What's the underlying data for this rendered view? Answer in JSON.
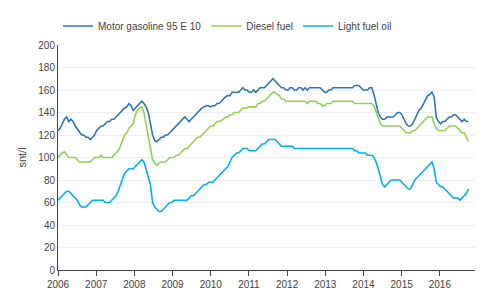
{
  "chart_data": {
    "type": "line",
    "ylabel": "snt/l",
    "xlim": [
      2006.0,
      2016.92
    ],
    "ylim": [
      0,
      200
    ],
    "xticks": [
      2006,
      2007,
      2008,
      2009,
      2010,
      2011,
      2012,
      2013,
      2014,
      2015,
      2016
    ],
    "yticks": [
      0,
      20,
      40,
      60,
      80,
      100,
      120,
      140,
      160,
      180,
      200
    ],
    "grid": true,
    "legend": "upper left",
    "x": [
      2006,
      2006.0563,
      2006.1126,
      2006.1688,
      2006.2251,
      2006.2814,
      2006.3377,
      2006.394,
      2006.4503,
      2006.5065,
      2006.5628,
      2006.6191,
      2006.6754,
      2006.7317,
      2006.788,
      2006.8442,
      2006.9005,
      2006.9568,
      2007.0131,
      2007.0694,
      2007.1257,
      2007.1819,
      2007.2382,
      2007.2945,
      2007.3508,
      2007.4071,
      2007.4634,
      2007.5196,
      2007.5759,
      2007.6322,
      2007.6885,
      2007.7448,
      2007.801,
      2007.8573,
      2007.9136,
      2007.9699,
      2008.0262,
      2008.0825,
      2008.1387,
      2008.195,
      2008.2513,
      2008.3076,
      2008.3639,
      2008.4202,
      2008.4764,
      2008.5327,
      2008.589,
      2008.6453,
      2008.7016,
      2008.7579,
      2008.8141,
      2008.8704,
      2008.9267,
      2008.983,
      2009.0393,
      2009.0955,
      2009.1518,
      2009.2081,
      2009.2644,
      2009.3207,
      2009.377,
      2009.4332,
      2009.4895,
      2009.5458,
      2009.6021,
      2009.6584,
      2009.7147,
      2009.7709,
      2009.8272,
      2009.8835,
      2009.9398,
      2009.9961,
      2010.0524,
      2010.1086,
      2010.1649,
      2010.2212,
      2010.2775,
      2010.3338,
      2010.3901,
      2010.4463,
      2010.5026,
      2010.5589,
      2010.6152,
      2010.6715,
      2010.7277,
      2010.784,
      2010.8403,
      2010.8966,
      2010.9529,
      2011.0092,
      2011.0654,
      2011.1217,
      2011.178,
      2011.2343,
      2011.2906,
      2011.3469,
      2011.4031,
      2011.4594,
      2011.5157,
      2011.572,
      2011.6283,
      2011.6846,
      2011.7408,
      2011.7971,
      2011.8534,
      2011.9097,
      2011.966,
      2012.0223,
      2012.0785,
      2012.1348,
      2012.1911,
      2012.2474,
      2012.3037,
      2012.3599,
      2012.4162,
      2012.4725,
      2012.5288,
      2012.5851,
      2012.6414,
      2012.6976,
      2012.7539,
      2012.8102,
      2012.8665,
      2012.9228,
      2012.9791,
      2013.0353,
      2013.0916,
      2013.1479,
      2013.2042,
      2013.2605,
      2013.3168,
      2013.373,
      2013.4293,
      2013.4856,
      2013.5419,
      2013.5982,
      2013.6545,
      2013.7107,
      2013.767,
      2013.8233,
      2013.8796,
      2013.9359,
      2013.9921,
      2014.0484,
      2014.1047,
      2014.161,
      2014.2173,
      2014.2736,
      2014.3298,
      2014.3861,
      2014.4424,
      2014.4987,
      2014.555,
      2014.6113,
      2014.6675,
      2014.7238,
      2014.7801,
      2014.8364,
      2014.8927,
      2014.949,
      2015.0052,
      2015.0615,
      2015.1178,
      2015.1741,
      2015.2304,
      2015.2866,
      2015.3429,
      2015.3992,
      2015.4555,
      2015.5118,
      2015.5681,
      2015.6243,
      2015.6806,
      2015.7369,
      2015.7932,
      2015.8495,
      2015.9058,
      2015.962,
      2016.0183,
      2016.0746,
      2016.1309,
      2016.1872,
      2016.2435,
      2016.2997,
      2016.356,
      2016.4123,
      2016.4686,
      2016.5249,
      2016.5812,
      2016.6374,
      2016.6937,
      2016.75
    ],
    "series": [
      {
        "name": "Motor gasoline 95 E 10",
        "color": "#2e75b6",
        "values": [
          124,
          126,
          130,
          134,
          136,
          132,
          134,
          132,
          128,
          125,
          122,
          120,
          120,
          118,
          118,
          116,
          118,
          120,
          124,
          126,
          128,
          128,
          130,
          132,
          132,
          134,
          134,
          136,
          138,
          140,
          142,
          144,
          145,
          148,
          146,
          142,
          144,
          146,
          148,
          150,
          148,
          145,
          140,
          130,
          120,
          115,
          114,
          116,
          118,
          118,
          120,
          120,
          122,
          124,
          126,
          128,
          130,
          132,
          134,
          136,
          134,
          132,
          134,
          136,
          138,
          140,
          142,
          144,
          145,
          146,
          146,
          145,
          146,
          146,
          148,
          148,
          150,
          152,
          154,
          155,
          155,
          158,
          158,
          158,
          158,
          160,
          162,
          160,
          160,
          158,
          158,
          160,
          158,
          160,
          162,
          162,
          162,
          164,
          166,
          168,
          170,
          168,
          166,
          164,
          162,
          162,
          160,
          160,
          162,
          162,
          160,
          160,
          162,
          162,
          160,
          162,
          160,
          162,
          162,
          162,
          162,
          162,
          162,
          160,
          158,
          158,
          160,
          160,
          162,
          162,
          162,
          162,
          162,
          162,
          162,
          162,
          162,
          162,
          164,
          164,
          164,
          162,
          160,
          160,
          160,
          162,
          162,
          156,
          148,
          140,
          136,
          134,
          134,
          136,
          136,
          136,
          136,
          138,
          140,
          140,
          138,
          134,
          130,
          128,
          128,
          130,
          134,
          138,
          142,
          144,
          148,
          152,
          155,
          156,
          158,
          154,
          136,
          132,
          130,
          132,
          132,
          134,
          136,
          136,
          138,
          138,
          136,
          134,
          132,
          134,
          132,
          132
        ]
      },
      {
        "name": "Diesel fuel",
        "color": "#92d050",
        "values": [
          100,
          102,
          104,
          105,
          102,
          100,
          100,
          100,
          100,
          98,
          96,
          96,
          96,
          96,
          96,
          96,
          98,
          100,
          100,
          100,
          102,
          100,
          100,
          100,
          100,
          100,
          102,
          104,
          106,
          110,
          116,
          120,
          122,
          126,
          128,
          130,
          138,
          142,
          144,
          145,
          140,
          130,
          120,
          108,
          98,
          95,
          93,
          95,
          96,
          96,
          96,
          98,
          100,
          100,
          100,
          102,
          102,
          104,
          106,
          108,
          108,
          110,
          112,
          114,
          116,
          118,
          118,
          120,
          122,
          124,
          126,
          128,
          128,
          130,
          132,
          132,
          133,
          134,
          136,
          136,
          138,
          138,
          140,
          140,
          140,
          142,
          144,
          144,
          144,
          145,
          145,
          145,
          145,
          148,
          148,
          150,
          150,
          152,
          154,
          156,
          158,
          158,
          156,
          155,
          152,
          152,
          150,
          150,
          150,
          150,
          150,
          150,
          150,
          150,
          150,
          150,
          148,
          150,
          150,
          150,
          150,
          148,
          148,
          146,
          146,
          148,
          148,
          148,
          150,
          150,
          150,
          150,
          150,
          150,
          150,
          150,
          150,
          150,
          148,
          148,
          148,
          148,
          148,
          148,
          148,
          148,
          148,
          146,
          140,
          134,
          130,
          128,
          128,
          128,
          128,
          128,
          128,
          128,
          128,
          128,
          126,
          124,
          122,
          122,
          122,
          124,
          124,
          126,
          128,
          130,
          132,
          134,
          136,
          136,
          136,
          130,
          126,
          124,
          124,
          124,
          124,
          126,
          128,
          128,
          128,
          128,
          126,
          124,
          122,
          122,
          118,
          114
        ]
      },
      {
        "name": "Light fuel oil",
        "color": "#00b0f0",
        "values": [
          62,
          64,
          66,
          68,
          70,
          70,
          68,
          66,
          64,
          62,
          58,
          56,
          56,
          56,
          58,
          60,
          62,
          62,
          62,
          62,
          62,
          62,
          60,
          60,
          60,
          62,
          64,
          66,
          70,
          76,
          82,
          86,
          88,
          90,
          90,
          90,
          92,
          94,
          96,
          98,
          96,
          90,
          84,
          76,
          60,
          56,
          54,
          52,
          52,
          54,
          56,
          58,
          60,
          60,
          62,
          62,
          62,
          62,
          62,
          62,
          62,
          64,
          66,
          66,
          68,
          70,
          72,
          74,
          76,
          76,
          78,
          78,
          78,
          80,
          82,
          84,
          86,
          88,
          90,
          92,
          96,
          100,
          102,
          104,
          104,
          106,
          108,
          108,
          108,
          106,
          106,
          106,
          106,
          108,
          110,
          112,
          112,
          114,
          116,
          116,
          116,
          116,
          114,
          112,
          110,
          110,
          110,
          110,
          110,
          110,
          108,
          108,
          108,
          108,
          108,
          108,
          108,
          108,
          108,
          108,
          108,
          108,
          108,
          108,
          108,
          108,
          108,
          108,
          108,
          108,
          108,
          108,
          108,
          108,
          108,
          108,
          108,
          108,
          106,
          106,
          104,
          104,
          104,
          104,
          102,
          102,
          102,
          100,
          96,
          90,
          82,
          76,
          74,
          76,
          78,
          80,
          80,
          80,
          80,
          80,
          78,
          76,
          74,
          72,
          72,
          76,
          80,
          82,
          84,
          86,
          88,
          90,
          92,
          94,
          96,
          90,
          78,
          76,
          74,
          74,
          72,
          70,
          68,
          66,
          64,
          64,
          64,
          62,
          64,
          66,
          68,
          72
        ]
      }
    ]
  }
}
